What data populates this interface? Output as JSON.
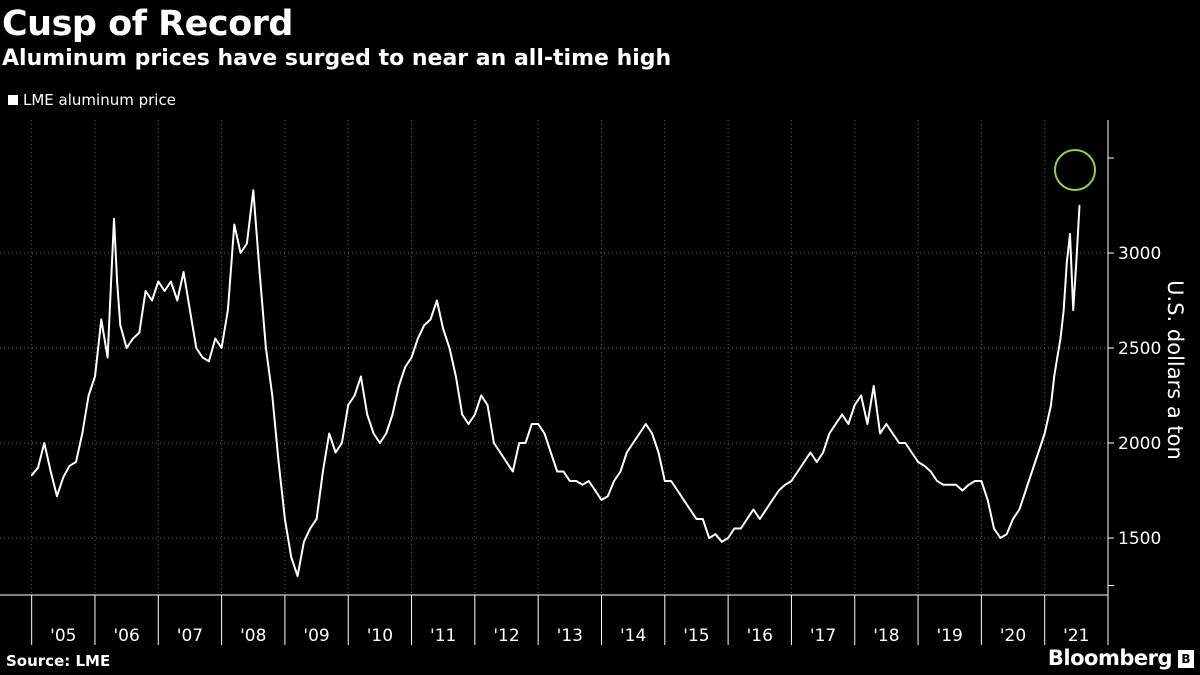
{
  "header": {
    "title": "Cusp of Record",
    "subtitle": "Aluminum prices have surged to near an all-time high"
  },
  "footer": {
    "source": "Source: LME",
    "brand": "Bloomberg",
    "brand_icon": "bloomberg-logo-icon"
  },
  "colors": {
    "background": "#000000",
    "line": "#ffffff",
    "highlight_circle": "#8fd14f",
    "grid": "#666666"
  },
  "chart_data": {
    "type": "line",
    "xlabel": "",
    "ylabel": "U.S. dollars a ton",
    "ylim": [
      1200,
      3700
    ],
    "x_range": [
      2004.85,
      2021.45
    ],
    "yticks": [
      1500,
      2000,
      2500,
      3000
    ],
    "xtick_labels": [
      "'05",
      "'06",
      "'07",
      "'08",
      "'09",
      "'10",
      "'11",
      "'12",
      "'13",
      "'14",
      "'15",
      "'16",
      "'17",
      "'18",
      "'19",
      "'20",
      "'21"
    ],
    "grid": true,
    "legend": {
      "placement": "top-left",
      "entries": [
        "LME aluminum price"
      ]
    },
    "annotation": {
      "type": "circle",
      "x": 2021.5,
      "y": 3270
    },
    "series": [
      {
        "name": "LME aluminum price",
        "x": [
          2005.0,
          2005.1,
          2005.2,
          2005.3,
          2005.4,
          2005.5,
          2005.6,
          2005.7,
          2005.8,
          2005.9,
          2006.0,
          2006.1,
          2006.2,
          2006.3,
          2006.35,
          2006.4,
          2006.5,
          2006.6,
          2006.7,
          2006.8,
          2006.9,
          2007.0,
          2007.1,
          2007.2,
          2007.3,
          2007.4,
          2007.5,
          2007.6,
          2007.7,
          2007.8,
          2007.9,
          2008.0,
          2008.1,
          2008.2,
          2008.3,
          2008.4,
          2008.5,
          2008.6,
          2008.7,
          2008.8,
          2008.9,
          2009.0,
          2009.1,
          2009.2,
          2009.3,
          2009.4,
          2009.5,
          2009.6,
          2009.7,
          2009.8,
          2009.9,
          2010.0,
          2010.1,
          2010.2,
          2010.3,
          2010.4,
          2010.5,
          2010.6,
          2010.7,
          2010.8,
          2010.9,
          2011.0,
          2011.1,
          2011.2,
          2011.3,
          2011.4,
          2011.5,
          2011.6,
          2011.7,
          2011.8,
          2011.9,
          2012.0,
          2012.1,
          2012.2,
          2012.3,
          2012.4,
          2012.5,
          2012.6,
          2012.7,
          2012.8,
          2012.9,
          2013.0,
          2013.1,
          2013.2,
          2013.3,
          2013.4,
          2013.5,
          2013.6,
          2013.7,
          2013.8,
          2013.9,
          2014.0,
          2014.1,
          2014.2,
          2014.3,
          2014.4,
          2014.5,
          2014.6,
          2014.7,
          2014.8,
          2014.9,
          2015.0,
          2015.1,
          2015.2,
          2015.3,
          2015.4,
          2015.5,
          2015.6,
          2015.7,
          2015.8,
          2015.9,
          2016.0,
          2016.1,
          2016.2,
          2016.3,
          2016.4,
          2016.5,
          2016.6,
          2016.7,
          2016.8,
          2016.9,
          2017.0,
          2017.1,
          2017.2,
          2017.3,
          2017.4,
          2017.5,
          2017.6,
          2017.7,
          2017.8,
          2017.9,
          2018.0,
          2018.1,
          2018.2,
          2018.3,
          2018.4,
          2018.5,
          2018.6,
          2018.7,
          2018.8,
          2018.9,
          2019.0,
          2019.1,
          2019.2,
          2019.3,
          2019.4,
          2019.5,
          2019.6,
          2019.7,
          2019.8,
          2019.9,
          2020.0,
          2020.1,
          2020.2,
          2020.3,
          2020.4,
          2020.5,
          2020.6,
          2020.7,
          2020.8,
          2020.9,
          2021.0,
          2021.1,
          2021.15,
          2021.2,
          2021.25,
          2021.3,
          2021.35,
          2021.4,
          2021.45,
          2021.5,
          2021.55
        ],
        "y": [
          1830,
          1870,
          2000,
          1850,
          1720,
          1820,
          1880,
          1900,
          2050,
          2250,
          2350,
          2650,
          2450,
          3180,
          2850,
          2620,
          2500,
          2550,
          2580,
          2800,
          2750,
          2850,
          2800,
          2850,
          2750,
          2900,
          2700,
          2500,
          2450,
          2430,
          2550,
          2500,
          2700,
          3150,
          3000,
          3050,
          3330,
          2900,
          2500,
          2250,
          1900,
          1600,
          1400,
          1300,
          1480,
          1550,
          1600,
          1850,
          2050,
          1950,
          2000,
          2200,
          2250,
          2350,
          2150,
          2050,
          2000,
          2050,
          2150,
          2300,
          2400,
          2450,
          2550,
          2620,
          2650,
          2750,
          2600,
          2500,
          2350,
          2150,
          2100,
          2150,
          2250,
          2200,
          2000,
          1950,
          1900,
          1850,
          2000,
          2000,
          2100,
          2100,
          2050,
          1950,
          1850,
          1850,
          1800,
          1800,
          1780,
          1800,
          1750,
          1700,
          1720,
          1800,
          1850,
          1950,
          2000,
          2050,
          2100,
          2050,
          1950,
          1800,
          1800,
          1750,
          1700,
          1650,
          1600,
          1600,
          1500,
          1520,
          1480,
          1500,
          1550,
          1550,
          1600,
          1650,
          1600,
          1650,
          1700,
          1750,
          1780,
          1800,
          1850,
          1900,
          1950,
          1900,
          1950,
          2050,
          2100,
          2150,
          2100,
          2200,
          2250,
          2100,
          2300,
          2050,
          2100,
          2050,
          2000,
          2000,
          1950,
          1900,
          1880,
          1850,
          1800,
          1780,
          1780,
          1780,
          1750,
          1780,
          1800,
          1800,
          1700,
          1550,
          1500,
          1520,
          1600,
          1650,
          1750,
          1850,
          1950,
          2050,
          2200,
          2350,
          2450,
          2550,
          2700,
          2950,
          3100,
          2700,
          2950,
          3250
        ]
      }
    ]
  }
}
